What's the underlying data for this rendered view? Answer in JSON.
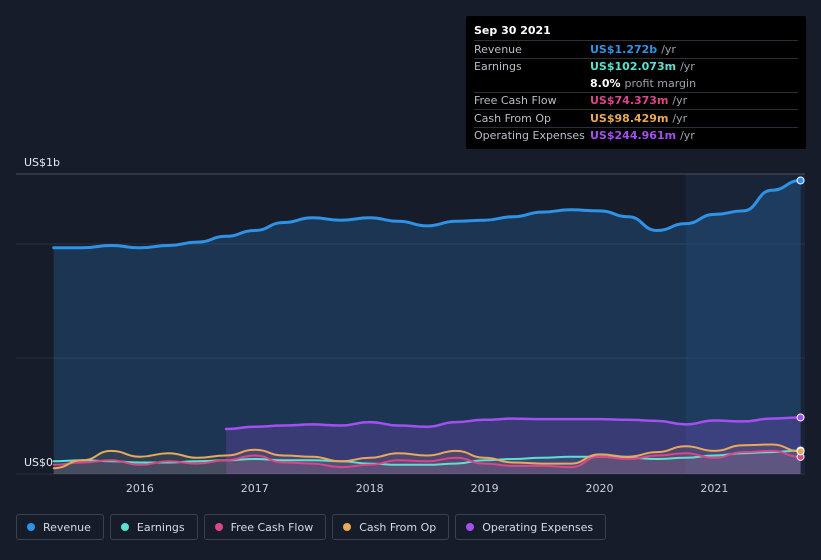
{
  "tooltip": {
    "date": "Sep 30 2021",
    "rows": [
      {
        "label": "Revenue",
        "value": "US$1.272b",
        "unit": "/yr",
        "color": "#2e93e6"
      },
      {
        "label": "Earnings",
        "value": "US$102.073m",
        "unit": "/yr",
        "color": "#5ee0cf"
      },
      {
        "label": "",
        "value": "8.0%",
        "unit": "profit margin",
        "color": "#ffffff"
      },
      {
        "label": "Free Cash Flow",
        "value": "US$74.373m",
        "unit": "/yr",
        "color": "#d9468a"
      },
      {
        "label": "Cash From Op",
        "value": "US$98.429m",
        "unit": "/yr",
        "color": "#e8a95a"
      },
      {
        "label": "Operating Expenses",
        "value": "US$244.961m",
        "unit": "/yr",
        "color": "#a350f0"
      }
    ]
  },
  "y_top_label": "US$1b",
  "y_bottom_label": "US$0",
  "legend": [
    {
      "label": "Revenue",
      "color": "#2e93e6"
    },
    {
      "label": "Earnings",
      "color": "#5ee0cf"
    },
    {
      "label": "Free Cash Flow",
      "color": "#d9468a"
    },
    {
      "label": "Cash From Op",
      "color": "#e8a95a"
    },
    {
      "label": "Operating Expenses",
      "color": "#a350f0"
    }
  ],
  "chart_data": {
    "type": "area",
    "ylim": [
      0,
      1300
    ],
    "x_ticks": [
      "2016",
      "2017",
      "2018",
      "2019",
      "2020",
      "2021"
    ],
    "x_tick_values": [
      2016,
      2017,
      2018,
      2019,
      2020,
      2021
    ],
    "xlim": [
      2015.2,
      2021.78
    ],
    "highlight_from": 2020.75,
    "series": [
      {
        "name": "Revenue",
        "color": "#2e93e6",
        "x": [
          2015.25,
          2015.5,
          2015.75,
          2016.0,
          2016.25,
          2016.5,
          2016.75,
          2017.0,
          2017.25,
          2017.5,
          2017.75,
          2018.0,
          2018.25,
          2018.5,
          2018.75,
          2019.0,
          2019.25,
          2019.5,
          2019.75,
          2020.0,
          2020.25,
          2020.5,
          2020.75,
          2021.0,
          2021.25,
          2021.5,
          2021.75
        ],
        "values": [
          980,
          980,
          990,
          980,
          990,
          1005,
          1030,
          1055,
          1090,
          1110,
          1100,
          1110,
          1095,
          1075,
          1095,
          1100,
          1115,
          1135,
          1145,
          1140,
          1115,
          1055,
          1085,
          1125,
          1140,
          1230,
          1272
        ]
      },
      {
        "name": "Operating Expenses",
        "color": "#a350f0",
        "x": [
          2016.75,
          2017.0,
          2017.25,
          2017.5,
          2017.75,
          2018.0,
          2018.25,
          2018.5,
          2018.75,
          2019.0,
          2019.25,
          2019.5,
          2019.75,
          2020.0,
          2020.25,
          2020.5,
          2020.75,
          2021.0,
          2021.25,
          2021.5,
          2021.75
        ],
        "values": [
          195,
          205,
          210,
          215,
          210,
          225,
          210,
          205,
          225,
          235,
          240,
          238,
          238,
          238,
          235,
          230,
          215,
          232,
          228,
          240,
          245
        ]
      },
      {
        "name": "Earnings",
        "color": "#5ee0cf",
        "x": [
          2015.25,
          2015.5,
          2015.75,
          2016.0,
          2016.25,
          2016.5,
          2016.75,
          2017.0,
          2017.25,
          2017.5,
          2017.75,
          2018.0,
          2018.25,
          2018.5,
          2018.75,
          2019.0,
          2019.25,
          2019.5,
          2019.75,
          2020.0,
          2020.25,
          2020.5,
          2020.75,
          2021.0,
          2021.25,
          2021.5,
          2021.75
        ],
        "values": [
          55,
          60,
          55,
          50,
          50,
          55,
          60,
          65,
          60,
          60,
          55,
          45,
          40,
          40,
          45,
          60,
          65,
          70,
          75,
          75,
          70,
          65,
          70,
          80,
          90,
          95,
          102
        ]
      },
      {
        "name": "Free Cash Flow",
        "color": "#d9468a",
        "x": [
          2015.25,
          2015.5,
          2015.75,
          2016.0,
          2016.25,
          2016.5,
          2016.75,
          2017.0,
          2017.25,
          2017.5,
          2017.75,
          2018.0,
          2018.25,
          2018.5,
          2018.75,
          2019.0,
          2019.25,
          2019.5,
          2019.75,
          2020.0,
          2020.25,
          2020.5,
          2020.75,
          2021.0,
          2021.25,
          2021.5,
          2021.75
        ],
        "values": [
          40,
          50,
          60,
          40,
          55,
          45,
          60,
          80,
          50,
          45,
          30,
          40,
          60,
          55,
          70,
          45,
          35,
          35,
          30,
          75,
          65,
          80,
          90,
          70,
          95,
          100,
          74
        ]
      },
      {
        "name": "Cash From Op",
        "color": "#e8a95a",
        "x": [
          2015.25,
          2015.5,
          2015.75,
          2016.0,
          2016.25,
          2016.5,
          2016.75,
          2017.0,
          2017.25,
          2017.5,
          2017.75,
          2018.0,
          2018.25,
          2018.5,
          2018.75,
          2019.0,
          2019.25,
          2019.5,
          2019.75,
          2020.0,
          2020.25,
          2020.5,
          2020.75,
          2021.0,
          2021.25,
          2021.5,
          2021.75
        ],
        "values": [
          25,
          60,
          100,
          75,
          90,
          70,
          80,
          105,
          80,
          75,
          55,
          70,
          90,
          80,
          100,
          70,
          50,
          45,
          45,
          85,
          75,
          95,
          120,
          100,
          125,
          128,
          98
        ]
      }
    ]
  }
}
